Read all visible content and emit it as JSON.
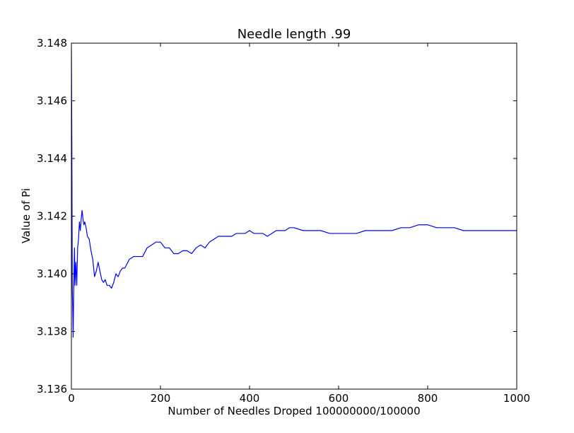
{
  "chart_data": {
    "type": "line",
    "title": "Needle length .99",
    "xlabel": "Number of Needles Droped 100000000/100000",
    "ylabel": "Value of Pi",
    "xlim": [
      0,
      1000
    ],
    "ylim": [
      3.136,
      3.148
    ],
    "xticks": [
      0,
      200,
      400,
      600,
      800,
      1000
    ],
    "xtick_labels": [
      "0",
      "200",
      "400",
      "600",
      "800",
      "1000"
    ],
    "yticks": [
      3.136,
      3.138,
      3.14,
      3.142,
      3.144,
      3.146,
      3.148
    ],
    "ytick_labels": [
      "3.136",
      "3.138",
      "3.140",
      "3.142",
      "3.144",
      "3.146",
      "3.148"
    ],
    "grid": false,
    "line_color": "#0000ff",
    "series": [
      {
        "x": [
          0,
          1,
          2,
          3,
          4,
          5,
          6,
          7,
          8,
          9,
          10,
          12,
          14,
          16,
          18,
          20,
          22,
          24,
          26,
          28,
          30,
          33,
          36,
          40,
          44,
          48,
          52,
          56,
          60,
          64,
          68,
          72,
          76,
          80,
          85,
          90,
          95,
          100,
          105,
          110,
          115,
          120,
          130,
          140,
          150,
          160,
          170,
          180,
          190,
          200,
          210,
          220,
          230,
          240,
          250,
          260,
          270,
          280,
          290,
          300,
          310,
          320,
          330,
          340,
          350,
          360,
          370,
          380,
          390,
          400,
          410,
          420,
          430,
          440,
          450,
          460,
          470,
          480,
          490,
          500,
          520,
          540,
          560,
          580,
          600,
          620,
          640,
          660,
          680,
          700,
          720,
          740,
          760,
          780,
          800,
          820,
          840,
          860,
          880,
          900,
          920,
          940,
          960,
          980,
          1000
        ],
        "y": [
          3.1478,
          3.1446,
          3.1395,
          3.1388,
          3.1378,
          3.1392,
          3.1402,
          3.1409,
          3.1396,
          3.14,
          3.1404,
          3.1396,
          3.1409,
          3.1412,
          3.1418,
          3.1415,
          3.1419,
          3.1422,
          3.1419,
          3.1417,
          3.1418,
          3.1416,
          3.1413,
          3.1412,
          3.1408,
          3.1405,
          3.1399,
          3.1401,
          3.1404,
          3.1401,
          3.1398,
          3.1397,
          3.1398,
          3.1396,
          3.1396,
          3.1395,
          3.1397,
          3.14,
          3.1399,
          3.1401,
          3.1402,
          3.1402,
          3.1405,
          3.1406,
          3.1406,
          3.1406,
          3.1409,
          3.141,
          3.1411,
          3.1411,
          3.1409,
          3.1409,
          3.1407,
          3.1407,
          3.1408,
          3.1408,
          3.1407,
          3.1409,
          3.141,
          3.1409,
          3.1411,
          3.1412,
          3.1413,
          3.1413,
          3.1413,
          3.1413,
          3.1414,
          3.1414,
          3.1414,
          3.1415,
          3.1414,
          3.1414,
          3.1414,
          3.1413,
          3.1414,
          3.1415,
          3.1415,
          3.1415,
          3.1416,
          3.1416,
          3.1415,
          3.1415,
          3.1415,
          3.1414,
          3.1414,
          3.1414,
          3.1414,
          3.1415,
          3.1415,
          3.1415,
          3.1415,
          3.1416,
          3.1416,
          3.1417,
          3.1417,
          3.1416,
          3.1416,
          3.1416,
          3.1415,
          3.1415,
          3.1415,
          3.1415,
          3.1415,
          3.1415,
          3.1415
        ]
      }
    ]
  }
}
